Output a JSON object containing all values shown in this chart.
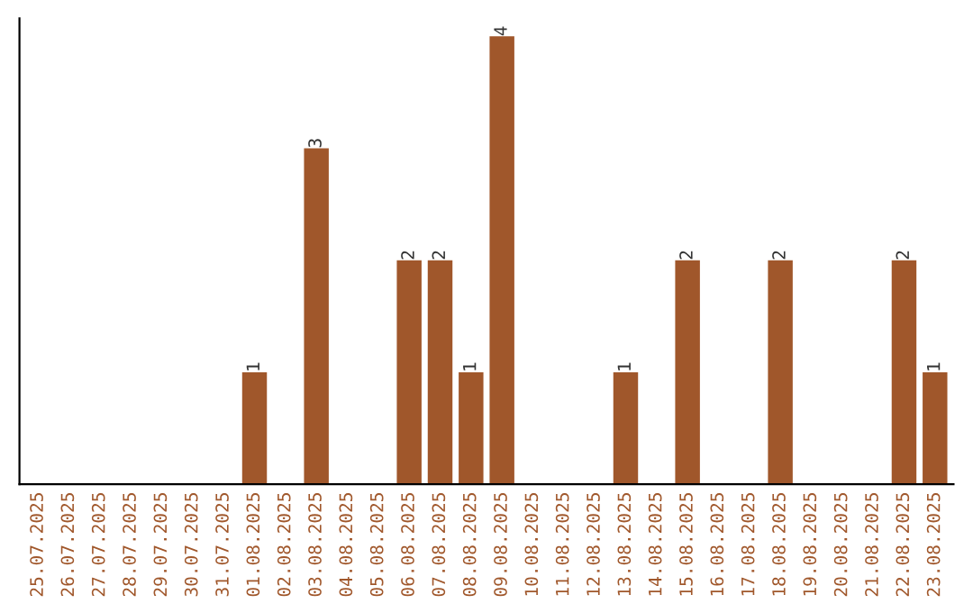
{
  "chart_data": {
    "type": "bar",
    "categories": [
      "25.07.2025",
      "26.07.2025",
      "27.07.2025",
      "28.07.2025",
      "29.07.2025",
      "30.07.2025",
      "31.07.2025",
      "01.08.2025",
      "02.08.2025",
      "03.08.2025",
      "04.08.2025",
      "05.08.2025",
      "06.08.2025",
      "07.08.2025",
      "08.08.2025",
      "09.08.2025",
      "10.08.2025",
      "11.08.2025",
      "12.08.2025",
      "13.08.2025",
      "14.08.2025",
      "15.08.2025",
      "16.08.2025",
      "17.08.2025",
      "18.08.2025",
      "19.08.2025",
      "20.08.2025",
      "21.08.2025",
      "22.08.2025",
      "23.08.2025"
    ],
    "values": [
      null,
      null,
      null,
      null,
      null,
      null,
      null,
      1,
      null,
      3,
      null,
      null,
      2,
      2,
      1,
      4,
      null,
      null,
      null,
      1,
      null,
      2,
      null,
      null,
      2,
      null,
      null,
      null,
      2,
      1
    ],
    "data_labels": true,
    "color": "#a0572b",
    "tick_labels": "x",
    "grid": false,
    "legend": false
  }
}
